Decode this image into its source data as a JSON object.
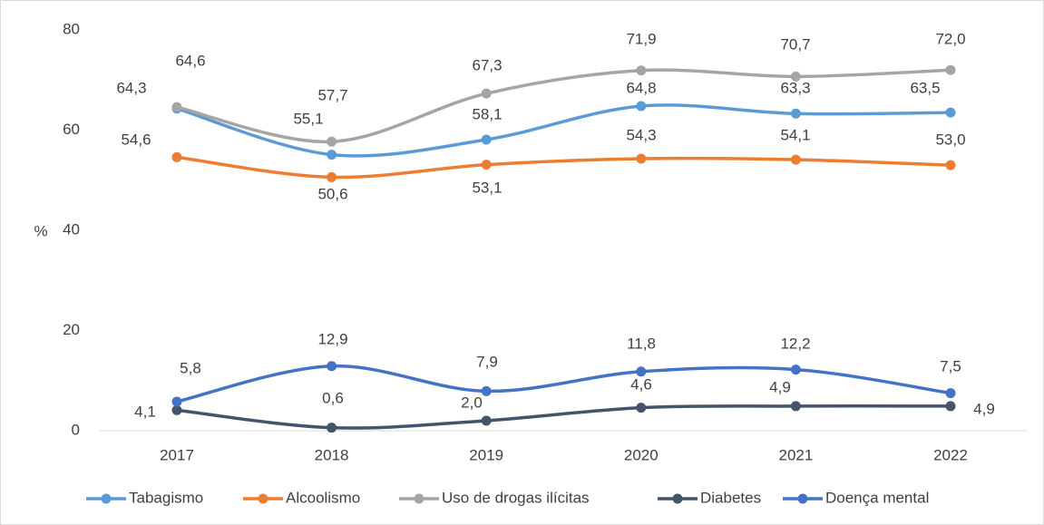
{
  "chart_data": {
    "type": "line",
    "y_axis_label": "%",
    "categories": [
      "2017",
      "2018",
      "2019",
      "2020",
      "2021",
      "2022"
    ],
    "ylim": [
      0,
      80
    ],
    "yticks": [
      0,
      20,
      40,
      60,
      80
    ],
    "legend": "bottom",
    "series": [
      {
        "name": "Tabagismo",
        "color": "#5b9bd5",
        "values": [
          64.3,
          55.1,
          58.1,
          64.8,
          63.3,
          63.5
        ],
        "value_labels": [
          "64,3",
          "55,1",
          "58,1",
          "64,8",
          "63,3",
          "63,5"
        ]
      },
      {
        "name": "Alcoolismo",
        "color": "#ed7d31",
        "values": [
          54.6,
          50.6,
          53.1,
          54.3,
          54.1,
          53.0
        ],
        "value_labels": [
          "54,6",
          "50,6",
          "53,1",
          "54,3",
          "54,1",
          "53,0"
        ]
      },
      {
        "name": "Uso de drogas ilícitas",
        "color": "#a5a5a5",
        "values": [
          64.6,
          57.7,
          67.3,
          71.9,
          70.7,
          72.0
        ],
        "value_labels": [
          "64,6",
          "57,7",
          "67,3",
          "71,9",
          "70,7",
          "72,0"
        ]
      },
      {
        "name": "Diabetes",
        "color": "#44546a",
        "values": [
          4.1,
          0.6,
          2.0,
          4.6,
          4.9,
          4.9
        ],
        "value_labels": [
          "4,1",
          "0,6",
          "2,0",
          "4,6",
          "4,9",
          "4,9"
        ]
      },
      {
        "name": "Doença mental",
        "color": "#4472c4",
        "values": [
          5.8,
          12.9,
          7.9,
          11.8,
          12.2,
          7.5
        ],
        "value_labels": [
          "5,8",
          "12,9",
          "7,9",
          "11,8",
          "12,2",
          "7,5"
        ]
      }
    ]
  }
}
